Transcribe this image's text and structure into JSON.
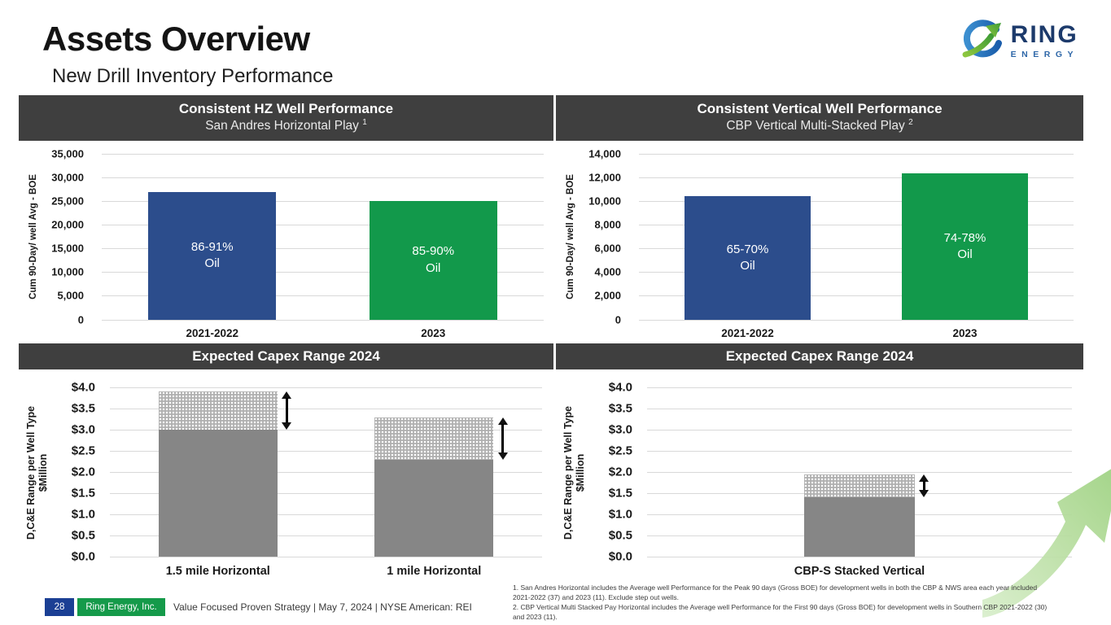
{
  "slide": {
    "title": "Assets Overview",
    "subtitle": "New Drill Inventory Performance",
    "logo": {
      "text": "RING",
      "subtext": "ENERGY"
    },
    "footer": {
      "page": "28",
      "company": "Ring Energy, Inc.",
      "tagline": "Value Focused Proven Strategy  | May 7, 2024 |  NYSE American: REI"
    },
    "footnotes": [
      "1. San Andres Horizontal includes the Average well Performance for the Peak 90 days (Gross BOE) for development wells in both the CBP & NWS area each year included 2021-2022 (37) and 2023 (11). Exclude step out wells.",
      "2. CBP Vertical Multi Stacked Pay Horizontal includes the Average well Performance for the First 90 days (Gross BOE) for development wells in Southern CBP 2021-2022 (30) and 2023 (11)."
    ]
  },
  "colors": {
    "accent_blue": "#2c4d8c",
    "accent_green": "#12994b",
    "header_gray": "#3f3f3f",
    "bar_gray": "#868686",
    "footer_blue": "#1b3f94",
    "footer_green": "#159a4a",
    "gridline": "#d9d9d9"
  },
  "chart_data": [
    {
      "type": "bar",
      "title": "Consistent HZ Well Performance",
      "subtitle": "San Andres Horizontal Play",
      "footnote_ref": "1",
      "ylabel": "Cum 90-Day/ well Avg - BOE",
      "ylim": [
        0,
        35000
      ],
      "ytick_step": 5000,
      "tick_format": "thousands",
      "grid": true,
      "legend": false,
      "categories": [
        "2021-2022",
        "2023"
      ],
      "values": [
        26800,
        25000
      ],
      "bar_colors": [
        "#2c4d8c",
        "#12994b"
      ],
      "bar_labels": [
        [
          "86-91%",
          "Oil"
        ],
        [
          "85-90%",
          "Oil"
        ]
      ]
    },
    {
      "type": "bar",
      "title": "Consistent Vertical Well Performance",
      "subtitle": "CBP Vertical Multi-Stacked Play",
      "footnote_ref": "2",
      "ylabel": "Cum 90-Day/ well Avg - BOE",
      "ylim": [
        0,
        14000
      ],
      "ytick_step": 2000,
      "tick_format": "thousands",
      "grid": true,
      "legend": false,
      "categories": [
        "2021-2022",
        "2023"
      ],
      "values": [
        10400,
        12300
      ],
      "bar_colors": [
        "#2c4d8c",
        "#12994b"
      ],
      "bar_labels": [
        [
          "65-70%",
          "Oil"
        ],
        [
          "74-78%",
          "Oil"
        ]
      ]
    },
    {
      "type": "stacked-range-bar",
      "title": "Expected Capex Range 2024",
      "ylabel": "D,C&E Range per Well  Type",
      "ylabel2": "$Million",
      "ylim": [
        0,
        4
      ],
      "ytick_step": 0.5,
      "tick_format": "currency1",
      "grid": true,
      "legend": false,
      "categories": [
        "1.5 mile Horizontal",
        "1 mile Horizontal"
      ],
      "series": [
        {
          "name": "range_low",
          "values": [
            3.0,
            2.3
          ]
        },
        {
          "name": "range_high",
          "values": [
            3.9,
            3.3
          ]
        }
      ],
      "bar_color": "#868686",
      "range_pattern": "white-dots",
      "arrow_color": "#000000"
    },
    {
      "type": "stacked-range-bar",
      "title": "Expected Capex Range 2024",
      "ylabel": "D,C&E Range per Well  Type",
      "ylabel2": "$Million",
      "ylim": [
        0,
        4
      ],
      "ytick_step": 0.5,
      "tick_format": "currency1",
      "grid": true,
      "legend": false,
      "categories": [
        "CBP-S Stacked Vertical"
      ],
      "series": [
        {
          "name": "range_low",
          "values": [
            1.4
          ]
        },
        {
          "name": "range_high",
          "values": [
            1.95
          ]
        }
      ],
      "bar_color": "#868686",
      "range_pattern": "white-dots",
      "arrow_color": "#000000"
    }
  ]
}
